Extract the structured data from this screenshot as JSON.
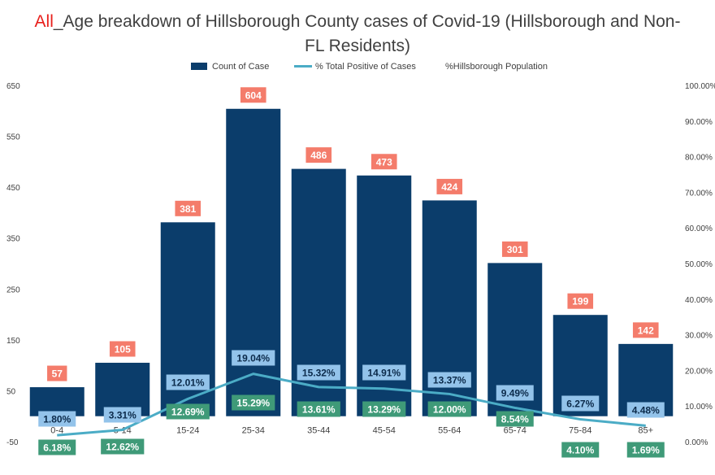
{
  "chart_data": {
    "type": "bar",
    "title_prefix": "All",
    "title_line1": "_Age breakdown of Hillsborough County cases of Covid-19 (Hillsborough and Non-",
    "title_line2": "FL Residents)",
    "categories": [
      "0-4",
      "5-14",
      "15-24",
      "25-34",
      "35-44",
      "45-54",
      "55-64",
      "65-74",
      "75-84",
      "85+"
    ],
    "series": [
      {
        "name": "Count of Case",
        "kind": "bar",
        "axis": "left",
        "values": [
          57,
          105,
          381,
          604,
          486,
          473,
          424,
          301,
          199,
          142
        ],
        "labels": [
          "57",
          "105",
          "381",
          "604",
          "486",
          "473",
          "424",
          "301",
          "199",
          "142"
        ]
      },
      {
        "name": "% Total Positive of Cases",
        "kind": "line",
        "axis": "right",
        "values": [
          1.8,
          3.31,
          12.01,
          19.04,
          15.32,
          14.91,
          13.37,
          9.49,
          6.27,
          4.48
        ],
        "labels": [
          "1.80%",
          "3.31%",
          "12.01%",
          "19.04%",
          "15.32%",
          "14.91%",
          "13.37%",
          "9.49%",
          "6.27%",
          "4.48%"
        ]
      },
      {
        "name": "%Hillsborough Population",
        "kind": "labels",
        "axis": "right",
        "values": [
          6.18,
          12.62,
          12.69,
          15.29,
          13.61,
          13.29,
          12.0,
          8.54,
          4.1,
          1.69
        ],
        "labels": [
          "6.18%",
          "12.62%",
          "12.69%",
          "15.29%",
          "13.61%",
          "13.29%",
          "12.00%",
          "8.54%",
          "4.10%",
          "1.69%"
        ]
      }
    ],
    "y_left": {
      "ylim": [
        -50,
        650
      ],
      "ticks": [
        650,
        550,
        450,
        350,
        250,
        150,
        50,
        -50
      ]
    },
    "y_right": {
      "ylim": [
        0,
        100
      ],
      "ticks": [
        "100.00%",
        "90.00%",
        "80.00%",
        "70.00%",
        "60.00%",
        "50.00%",
        "40.00%",
        "30.00%",
        "20.00%",
        "10.00%",
        "0.00%"
      ]
    },
    "legend_position": "top",
    "grid": false,
    "colors": {
      "bar": "#0b3d6b",
      "line": "#4bacc6",
      "count_label_bg": "#f47c6b",
      "line_label_bg": "#93c3ea",
      "pop_label_bg": "#3f9a78",
      "title_prefix": "#e8201c"
    }
  }
}
